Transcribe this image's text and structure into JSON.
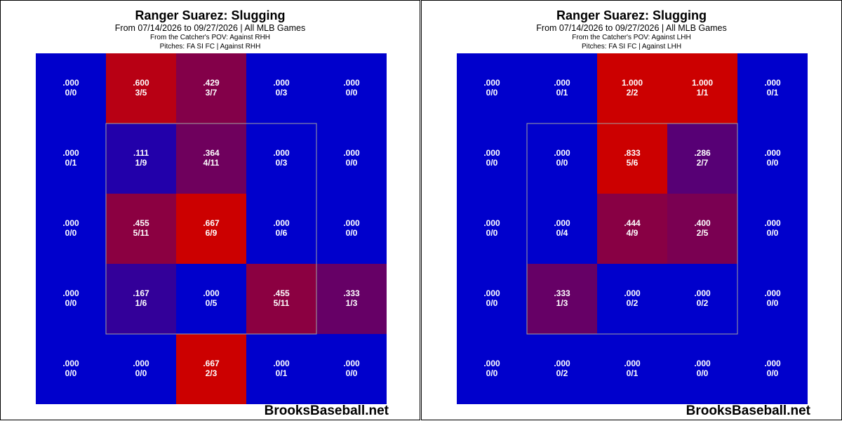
{
  "chart_data": [
    {
      "type": "heatmap",
      "title": "Ranger Suarez: Slugging",
      "subtitle": "From 07/14/2026 to 09/27/2026 | All MLB Games",
      "pov_line": "From the Catcher's POV:   Against RHH",
      "pitches_line": "Pitches:  FA  SI  FC  |  Against RHH",
      "watermark": "BrooksBaseball.net",
      "grid": [
        [
          {
            "value": ".000",
            "count": "0/0"
          },
          {
            "value": ".600",
            "count": "3/5"
          },
          {
            "value": ".429",
            "count": "3/7"
          },
          {
            "value": ".000",
            "count": "0/3"
          },
          {
            "value": ".000",
            "count": "0/0"
          }
        ],
        [
          {
            "value": ".000",
            "count": "0/1"
          },
          {
            "value": ".111",
            "count": "1/9"
          },
          {
            "value": ".364",
            "count": "4/11"
          },
          {
            "value": ".000",
            "count": "0/3"
          },
          {
            "value": ".000",
            "count": "0/0"
          }
        ],
        [
          {
            "value": ".000",
            "count": "0/0"
          },
          {
            "value": ".455",
            "count": "5/11"
          },
          {
            "value": ".667",
            "count": "6/9"
          },
          {
            "value": ".000",
            "count": "0/6"
          },
          {
            "value": ".000",
            "count": "0/0"
          }
        ],
        [
          {
            "value": ".000",
            "count": "0/0"
          },
          {
            "value": ".167",
            "count": "1/6"
          },
          {
            "value": ".000",
            "count": "0/5"
          },
          {
            "value": ".455",
            "count": "5/11"
          },
          {
            "value": ".333",
            "count": "1/3"
          }
        ],
        [
          {
            "value": ".000",
            "count": "0/0"
          },
          {
            "value": ".000",
            "count": "0/0"
          },
          {
            "value": ".667",
            "count": "2/3"
          },
          {
            "value": ".000",
            "count": "0/1"
          },
          {
            "value": ".000",
            "count": "0/0"
          }
        ]
      ]
    },
    {
      "type": "heatmap",
      "title": "Ranger Suarez: Slugging",
      "subtitle": "From 07/14/2026 to 09/27/2026 | All MLB Games",
      "pov_line": "From the Catcher's POV:   Against LHH",
      "pitches_line": "Pitches:  FA  SI  FC  |  Against LHH",
      "watermark": "BrooksBaseball.net",
      "grid": [
        [
          {
            "value": ".000",
            "count": "0/0"
          },
          {
            "value": ".000",
            "count": "0/1"
          },
          {
            "value": "1.000",
            "count": "2/2"
          },
          {
            "value": "1.000",
            "count": "1/1"
          },
          {
            "value": ".000",
            "count": "0/1"
          }
        ],
        [
          {
            "value": ".000",
            "count": "0/0"
          },
          {
            "value": ".000",
            "count": "0/0"
          },
          {
            "value": ".833",
            "count": "5/6"
          },
          {
            "value": ".286",
            "count": "2/7"
          },
          {
            "value": ".000",
            "count": "0/0"
          }
        ],
        [
          {
            "value": ".000",
            "count": "0/0"
          },
          {
            "value": ".000",
            "count": "0/4"
          },
          {
            "value": ".444",
            "count": "4/9"
          },
          {
            "value": ".400",
            "count": "2/5"
          },
          {
            "value": ".000",
            "count": "0/0"
          }
        ],
        [
          {
            "value": ".000",
            "count": "0/0"
          },
          {
            "value": ".333",
            "count": "1/3"
          },
          {
            "value": ".000",
            "count": "0/2"
          },
          {
            "value": ".000",
            "count": "0/2"
          },
          {
            "value": ".000",
            "count": "0/0"
          }
        ],
        [
          {
            "value": ".000",
            "count": "0/0"
          },
          {
            "value": ".000",
            "count": "0/2"
          },
          {
            "value": ".000",
            "count": "0/1"
          },
          {
            "value": ".000",
            "count": "0/0"
          },
          {
            "value": ".000",
            "count": "0/0"
          }
        ]
      ]
    }
  ],
  "colors": {
    "low": "#0000cc",
    "high": "#cc0000",
    "strike_zone_border": "#a0a0a0",
    "text": "#ffffff"
  }
}
